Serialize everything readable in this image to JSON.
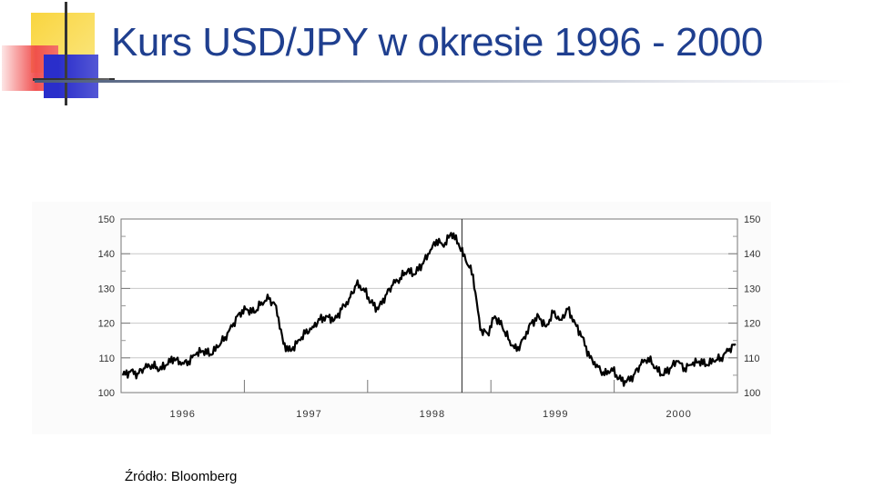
{
  "slide": {
    "title": "Kurs USD/JPY w okresie 1996 - 2000",
    "source": "Źródło: Bloomberg"
  },
  "colors": {
    "title": "#1f3f8f",
    "yellow_square": "#f9d53f",
    "red_square": "#f04a4a",
    "blue_square": "#2a2ecb",
    "line": "#000000"
  },
  "chart_data": {
    "type": "line",
    "title": "",
    "xlabel": "",
    "ylabel": "",
    "ylim": [
      100,
      150
    ],
    "y_ticks": [
      "100",
      "110",
      "120",
      "130",
      "140",
      "150"
    ],
    "year_labels": [
      "1996",
      "1997",
      "1998",
      "1999",
      "2000"
    ],
    "year_positions": [
      0.1,
      0.305,
      0.505,
      0.705,
      0.905
    ],
    "grid": "horizontal",
    "right_axis": true,
    "series": [
      {
        "values": [
          105,
          106,
          105.5,
          107,
          108,
          106.5,
          108,
          110,
          108,
          109,
          111,
          112,
          111,
          113,
          116,
          119,
          123,
          124,
          123,
          126,
          127,
          125,
          114,
          112,
          115,
          117,
          119,
          121,
          122,
          121,
          124,
          127,
          131,
          130,
          126,
          124,
          128,
          131,
          133,
          135,
          134,
          137,
          140,
          144,
          142,
          146,
          143,
          138,
          134,
          118,
          117,
          122,
          119,
          115,
          112,
          116,
          120,
          122,
          119,
          123,
          121,
          124,
          120,
          116,
          110,
          108,
          105,
          107,
          104,
          103,
          105,
          108,
          110,
          107,
          105,
          107,
          109,
          107,
          108,
          109,
          108,
          109,
          110,
          112,
          114
        ]
      }
    ],
    "marker_line_position": 0.553
  }
}
